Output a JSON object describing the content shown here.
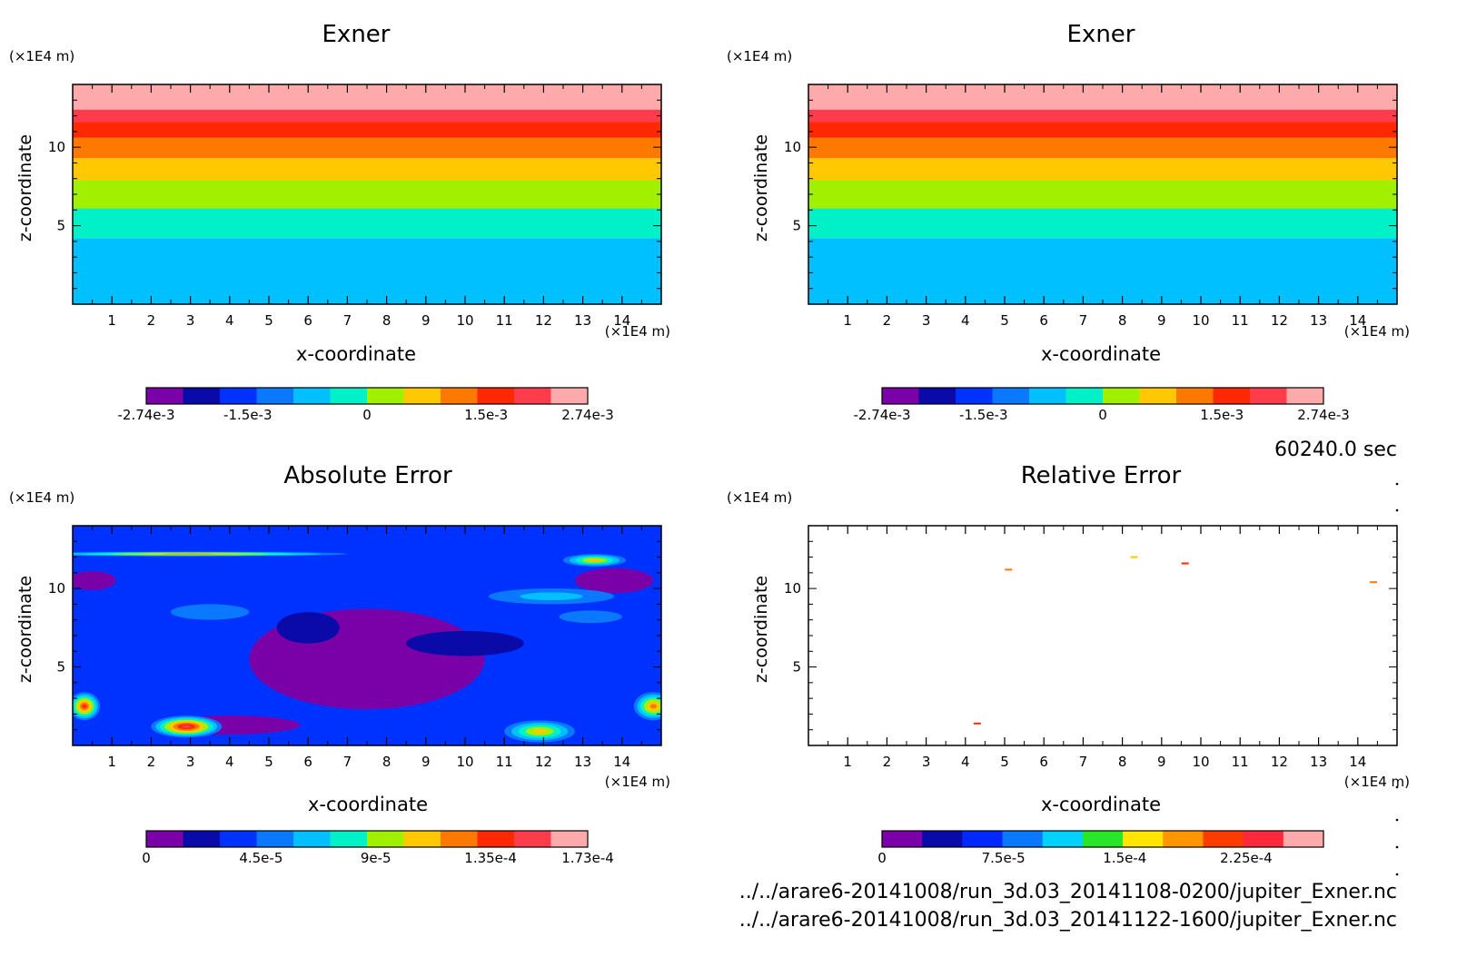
{
  "time_label": "60240.0 sec",
  "files": [
    "../../arare6-20141008/run_3d.03_20141108-0200/jupiter_Exner.nc",
    "../../arare6-20141008/run_3d.03_20141122-1600/jupiter_Exner.nc"
  ],
  "chart_data": [
    {
      "type": "heatmap",
      "title": "Exner",
      "xlabel": "x-coordinate",
      "ylabel": "z-coordinate",
      "x_unit": "(×1E4 m)",
      "y_unit": "(×1E4 m)",
      "xlim": [
        0,
        15
      ],
      "ylim": [
        0,
        14
      ],
      "x_ticks": [
        "1",
        "2",
        "3",
        "4",
        "5",
        "6",
        "7",
        "8",
        "9",
        "10",
        "11",
        "12",
        "13",
        "14"
      ],
      "y_ticks": [
        "5",
        "10"
      ],
      "bands": [
        {
          "z0": 0,
          "z1": 4.2,
          "level": 4
        },
        {
          "z0": 4.2,
          "z1": 6.1,
          "level": 5
        },
        {
          "z0": 6.1,
          "z1": 7.9,
          "level": 6
        },
        {
          "z0": 7.9,
          "z1": 9.3,
          "level": 7
        },
        {
          "z0": 9.3,
          "z1": 10.6,
          "level": 8
        },
        {
          "z0": 10.6,
          "z1": 11.6,
          "level": 9
        },
        {
          "z0": 11.6,
          "z1": 12.4,
          "level": 10
        },
        {
          "z0": 12.4,
          "z1": 14,
          "level": 11
        }
      ],
      "colorbar": {
        "colors": [
          "#7a00a8",
          "#0a0aa8",
          "#0032ff",
          "#0a78ff",
          "#00c0ff",
          "#00f0c8",
          "#a0f000",
          "#ffc800",
          "#ff7800",
          "#ff2800",
          "#ff3c4b",
          "#ffaaaa"
        ],
        "tick_labels": [
          "-2.74e-3",
          "-1.5e-3",
          "0",
          "1.5e-3",
          "2.74e-3"
        ],
        "tick_fracs": [
          0,
          0.23,
          0.5,
          0.77,
          1
        ]
      }
    },
    {
      "type": "heatmap",
      "title": "Exner",
      "xlabel": "x-coordinate",
      "ylabel": "z-coordinate",
      "x_unit": "(×1E4 m)",
      "y_unit": "(×1E4 m)",
      "xlim": [
        0,
        15
      ],
      "ylim": [
        0,
        14
      ],
      "x_ticks": [
        "1",
        "2",
        "3",
        "4",
        "5",
        "6",
        "7",
        "8",
        "9",
        "10",
        "11",
        "12",
        "13",
        "14"
      ],
      "y_ticks": [
        "5",
        "10"
      ],
      "bands": [
        {
          "z0": 0,
          "z1": 4.2,
          "level": 4
        },
        {
          "z0": 4.2,
          "z1": 6.1,
          "level": 5
        },
        {
          "z0": 6.1,
          "z1": 7.9,
          "level": 6
        },
        {
          "z0": 7.9,
          "z1": 9.3,
          "level": 7
        },
        {
          "z0": 9.3,
          "z1": 10.6,
          "level": 8
        },
        {
          "z0": 10.6,
          "z1": 11.6,
          "level": 9
        },
        {
          "z0": 11.6,
          "z1": 12.4,
          "level": 10
        },
        {
          "z0": 12.4,
          "z1": 14,
          "level": 11
        }
      ],
      "colorbar": {
        "colors": [
          "#7a00a8",
          "#0a0aa8",
          "#0032ff",
          "#0a78ff",
          "#00c0ff",
          "#00f0c8",
          "#a0f000",
          "#ffc800",
          "#ff7800",
          "#ff2800",
          "#ff3c4b",
          "#ffaaaa"
        ],
        "tick_labels": [
          "-2.74e-3",
          "-1.5e-3",
          "0",
          "1.5e-3",
          "2.74e-3"
        ],
        "tick_fracs": [
          0,
          0.23,
          0.5,
          0.77,
          1
        ]
      }
    },
    {
      "type": "heatmap",
      "title": "Absolute Error",
      "xlabel": "x-coordinate",
      "ylabel": "z-coordinate",
      "x_unit": "(×1E4 m)",
      "y_unit": "(×1E4 m)",
      "xlim": [
        0,
        15
      ],
      "ylim": [
        0,
        14
      ],
      "x_ticks": [
        "1",
        "2",
        "3",
        "4",
        "5",
        "6",
        "7",
        "8",
        "9",
        "10",
        "11",
        "12",
        "13",
        "14"
      ],
      "y_ticks": [
        "5",
        "10"
      ],
      "background_level": 2,
      "blobs": [
        {
          "x": 7.5,
          "z": 5.5,
          "rx": 3.0,
          "rz": 3.2,
          "level": 0
        },
        {
          "x": 13.8,
          "z": 10.5,
          "rx": 1.0,
          "rz": 0.8,
          "level": 0
        },
        {
          "x": 0.5,
          "z": 10.5,
          "rx": 0.6,
          "rz": 0.6,
          "level": 0
        },
        {
          "x": 4.0,
          "z": 1.3,
          "rx": 1.8,
          "rz": 0.6,
          "level": 0
        },
        {
          "x": 6.0,
          "z": 7.5,
          "rx": 0.8,
          "rz": 1.0,
          "level": 1
        },
        {
          "x": 10.0,
          "z": 6.5,
          "rx": 1.5,
          "rz": 0.8,
          "level": 1
        },
        {
          "x": 3.5,
          "z": 8.5,
          "rx": 1.0,
          "rz": 0.5,
          "level": 3
        },
        {
          "x": 13.2,
          "z": 8.2,
          "rx": 0.8,
          "rz": 0.4,
          "level": 3
        },
        {
          "x": 12.2,
          "z": 9.5,
          "rx": 1.6,
          "rz": 0.5,
          "level": 4
        },
        {
          "x": 0.3,
          "z": 2.5,
          "rx": 0.4,
          "rz": 0.9,
          "level": 9
        },
        {
          "x": 2.9,
          "z": 1.2,
          "rx": 0.9,
          "rz": 0.7,
          "level": 10
        },
        {
          "x": 11.9,
          "z": 0.9,
          "rx": 0.9,
          "rz": 0.7,
          "level": 7
        },
        {
          "x": 14.8,
          "z": 2.5,
          "rx": 0.5,
          "rz": 0.9,
          "level": 8
        },
        {
          "x": 13.3,
          "z": 11.8,
          "rx": 0.8,
          "rz": 0.4,
          "level": 7
        },
        {
          "x": 3.0,
          "z": 12.2,
          "rx": 4.0,
          "rz": 0.15,
          "level": 8
        }
      ],
      "colorbar": {
        "colors": [
          "#7a00a8",
          "#0a0aa8",
          "#0032ff",
          "#0a78ff",
          "#00c0ff",
          "#00f0c8",
          "#a0f000",
          "#ffc800",
          "#ff7800",
          "#ff2800",
          "#ff3c4b",
          "#ffaaaa"
        ],
        "tick_labels": [
          "0",
          "4.5e-5",
          "9e-5",
          "1.35e-4",
          "1.73e-4"
        ],
        "tick_fracs": [
          0,
          0.26,
          0.52,
          0.78,
          1
        ]
      }
    },
    {
      "type": "heatmap",
      "title": "Relative Error",
      "xlabel": "x-coordinate",
      "ylabel": "z-coordinate",
      "x_unit": "(×1E4 m)",
      "y_unit": "(×1E4 m)",
      "xlim": [
        0,
        15
      ],
      "ylim": [
        0,
        14
      ],
      "x_ticks": [
        "1",
        "2",
        "3",
        "4",
        "5",
        "6",
        "7",
        "8",
        "9",
        "10",
        "11",
        "12",
        "13",
        "14"
      ],
      "y_ticks": [
        "5",
        "10"
      ],
      "specks": [
        {
          "x": 5.1,
          "z": 11.2,
          "color": "#ff7800"
        },
        {
          "x": 8.3,
          "z": 12.0,
          "color": "#ffc800"
        },
        {
          "x": 9.6,
          "z": 11.6,
          "color": "#ff2800"
        },
        {
          "x": 14.4,
          "z": 10.4,
          "color": "#ff7800"
        },
        {
          "x": 4.3,
          "z": 1.4,
          "color": "#ff2800"
        }
      ],
      "colorbar": {
        "colors": [
          "#7a00a8",
          "#0a0aa8",
          "#0028ff",
          "#0a78ff",
          "#00d2ff",
          "#28e628",
          "#ffe600",
          "#ff9600",
          "#ff3c00",
          "#ff283c",
          "#ffaaaa"
        ],
        "tick_labels": [
          "0",
          "7.5e-5",
          "1.5e-4",
          "2.25e-4"
        ],
        "tick_fracs": [
          0,
          0.275,
          0.55,
          0.825
        ]
      }
    }
  ]
}
